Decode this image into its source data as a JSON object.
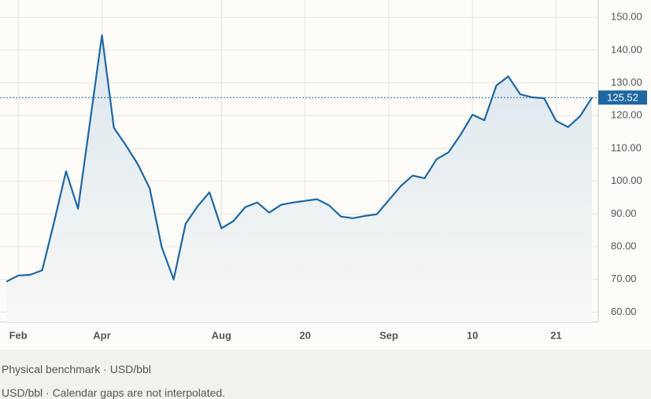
{
  "chart_data": {
    "type": "line",
    "categories": [
      null,
      "Feb",
      null,
      null,
      null,
      null,
      null,
      null,
      "Apr",
      null,
      null,
      null,
      null,
      null,
      null,
      null,
      null,
      null,
      "Aug",
      null,
      null,
      null,
      null,
      null,
      null,
      "20",
      null,
      null,
      null,
      null,
      null,
      null,
      "Sep",
      null,
      null,
      null,
      null,
      null,
      null,
      "10",
      null,
      null,
      null,
      null,
      null,
      null,
      "21",
      null,
      null,
      null
    ],
    "series": [
      {
        "name": "Physical benchmark",
        "color": "#1f67a0",
        "values": [
          69.3,
          71.2,
          71.4,
          72.8,
          87.5,
          103,
          91.6,
          118,
          144.5,
          116.3,
          111,
          105.2,
          97.8,
          79.9,
          70,
          87,
          92.3,
          96.6,
          85.6,
          87.8,
          92.1,
          93.5,
          90.4,
          92.8,
          93.5,
          94,
          94.5,
          92.6,
          89.2,
          88.7,
          89.4,
          89.9,
          94.2,
          98.5,
          101.7,
          100.9,
          106.7,
          108.8,
          114.1,
          120.3,
          118.6,
          129.2,
          132,
          126.5,
          125.6,
          125.3,
          118.4,
          116.5,
          119.8,
          125.52
        ]
      }
    ],
    "ylim": [
      57,
      155.3
    ],
    "yticks": [
      {
        "value": 60,
        "label": "60.00"
      },
      {
        "value": 70,
        "label": "70.00"
      },
      {
        "value": 80,
        "label": "80.00"
      },
      {
        "value": 90,
        "label": "90.00"
      },
      {
        "value": 100,
        "label": "100.00"
      },
      {
        "value": 110,
        "label": "110.00"
      },
      {
        "value": 120,
        "label": "120.00"
      },
      {
        "value": 130,
        "label": "130.00"
      },
      {
        "value": 140,
        "label": "140.00"
      },
      {
        "value": 150,
        "label": "150.00"
      }
    ],
    "grid": true,
    "caption": "Physical benchmark · USD/bbl",
    "note": "USD/bbl · Calendar gaps are not interpolated."
  }
}
